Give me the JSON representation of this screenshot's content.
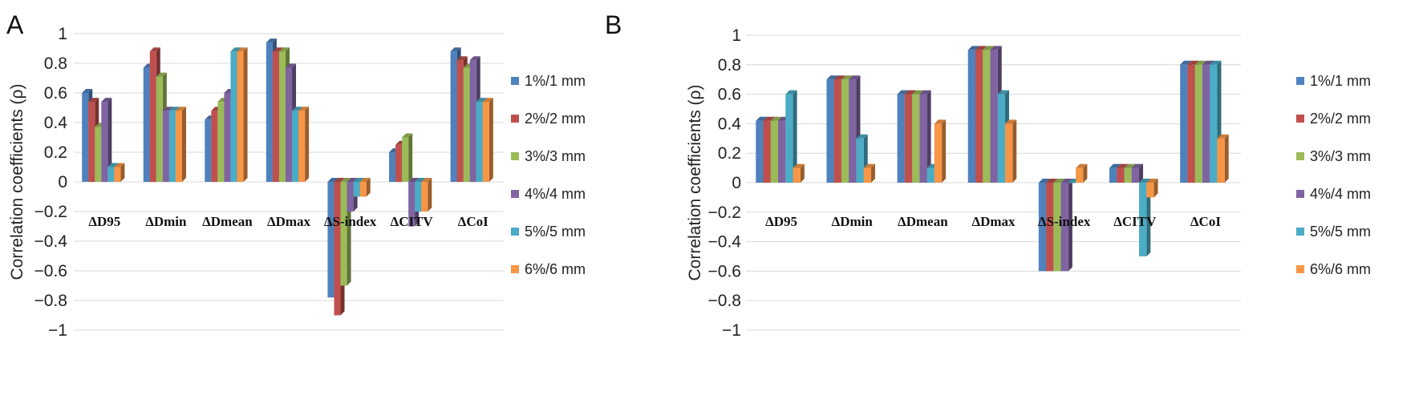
{
  "series_colors": [
    "#4f81bd",
    "#c0504d",
    "#9bbb59",
    "#8064a2",
    "#4bacc6",
    "#f79646"
  ],
  "chart_data": [
    {
      "type": "bar",
      "panel_label": "A",
      "ylabel": "Correlation coefficients (ρ)",
      "ylim": [
        -1,
        1
      ],
      "yticks": [
        1,
        0.8,
        0.6,
        0.4,
        0.2,
        0,
        -0.2,
        -0.4,
        -0.6,
        -0.8,
        -1
      ],
      "ytick_labels": [
        "1",
        "0.8",
        "0.6",
        "0.4",
        "0.2",
        "0",
        "−0.2",
        "−0.4",
        "−0.6",
        "−0.8",
        "−1"
      ],
      "grid": true,
      "legend_position": "right",
      "categories": [
        "ΔD95",
        "ΔDmin",
        "ΔDmean",
        "ΔDmax",
        "ΔS-index",
        "ΔCITV",
        "ΔCoI"
      ],
      "series": [
        {
          "name": "1%/1 mm",
          "values": [
            0.6,
            0.77,
            0.42,
            0.94,
            -0.78,
            0.2,
            0.88
          ]
        },
        {
          "name": "2%/2 mm",
          "values": [
            0.54,
            0.88,
            0.48,
            0.88,
            -0.9,
            0.25,
            0.82
          ]
        },
        {
          "name": "3%/3 mm",
          "values": [
            0.37,
            0.71,
            0.54,
            0.88,
            -0.7,
            0.3,
            0.77
          ]
        },
        {
          "name": "4%/4 mm",
          "values": [
            0.54,
            0.48,
            0.6,
            0.77,
            -0.2,
            -0.3,
            0.82
          ]
        },
        {
          "name": "5%/5 mm",
          "values": [
            0.1,
            0.48,
            0.88,
            0.48,
            -0.1,
            -0.2,
            0.54
          ]
        },
        {
          "name": "6%/6 mm",
          "values": [
            0.1,
            0.48,
            0.88,
            0.48,
            -0.1,
            -0.2,
            0.54
          ]
        }
      ]
    },
    {
      "type": "bar",
      "panel_label": "B",
      "ylabel": "Correlation coefficients (ρ)",
      "ylim": [
        -1,
        1
      ],
      "yticks": [
        1,
        0.8,
        0.6,
        0.4,
        0.2,
        0,
        -0.2,
        -0.4,
        -0.6,
        -0.8,
        -1
      ],
      "ytick_labels": [
        "1",
        "0.8",
        "0.6",
        "0.4",
        "0.2",
        "0",
        "−0.2",
        "−0.4",
        "−0.6",
        "−0.8",
        "−1"
      ],
      "grid": true,
      "legend_position": "right",
      "categories": [
        "ΔD95",
        "ΔDmin",
        "ΔDmean",
        "ΔDmax",
        "ΔS-index",
        "ΔCITV",
        "ΔCoI"
      ],
      "series": [
        {
          "name": "1%/1 mm",
          "values": [
            0.42,
            0.7,
            0.6,
            0.9,
            -0.6,
            0.1,
            0.8
          ]
        },
        {
          "name": "2%/2 mm",
          "values": [
            0.42,
            0.7,
            0.6,
            0.9,
            -0.6,
            0.1,
            0.8
          ]
        },
        {
          "name": "3%/3 mm",
          "values": [
            0.42,
            0.7,
            0.6,
            0.9,
            -0.6,
            0.1,
            0.8
          ]
        },
        {
          "name": "4%/4 mm",
          "values": [
            0.42,
            0.7,
            0.6,
            0.9,
            -0.6,
            0.1,
            0.8
          ]
        },
        {
          "name": "5%/5 mm",
          "values": [
            0.6,
            0.3,
            0.1,
            0.6,
            0,
            -0.5,
            0.8
          ]
        },
        {
          "name": "6%/6 mm",
          "values": [
            0.1,
            0.1,
            0.4,
            0.4,
            0.1,
            -0.1,
            0.3
          ]
        }
      ]
    }
  ]
}
